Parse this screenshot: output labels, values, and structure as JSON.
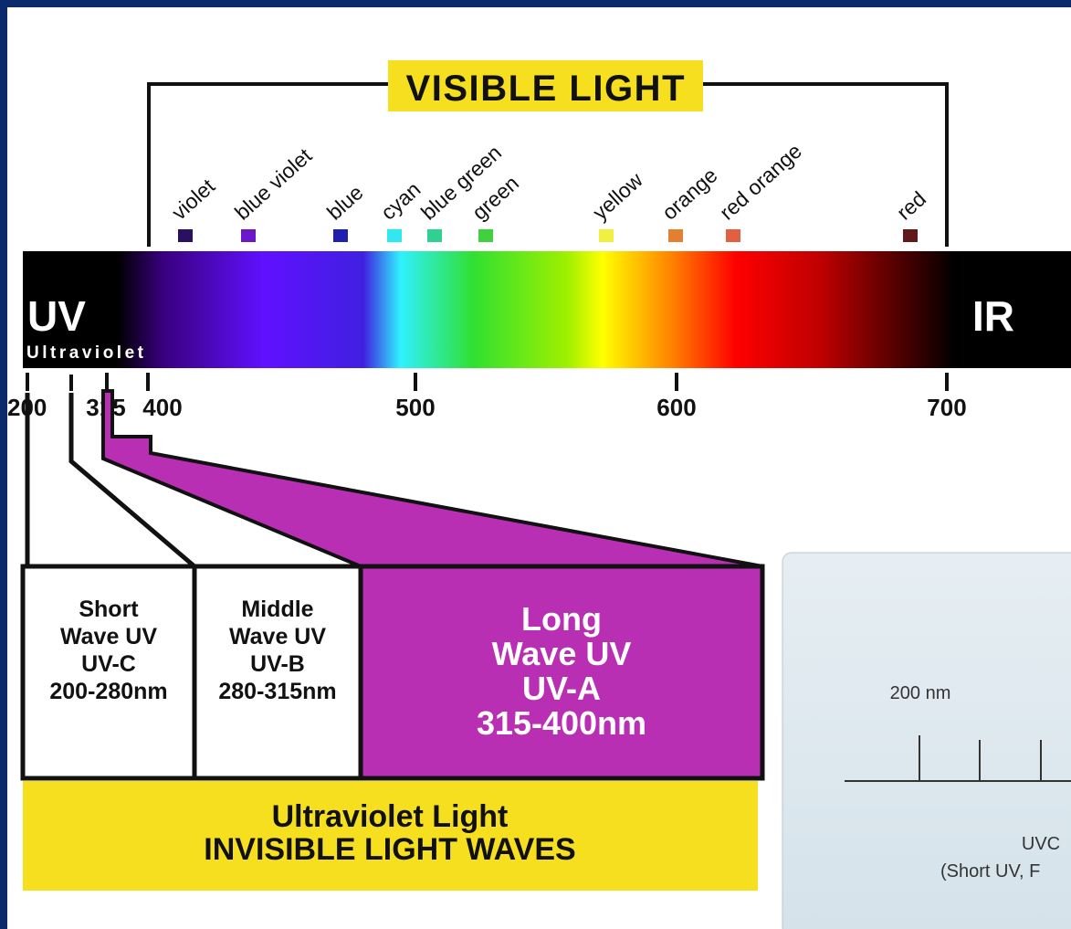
{
  "header": {
    "title": "VISIBLE LIGHT"
  },
  "colors": [
    "violet",
    "blue violet",
    "blue",
    "cyan",
    "blue green",
    "green",
    "yellow",
    "orange",
    "red orange",
    "red"
  ],
  "bar": {
    "left": "UV",
    "left_sub": "Ultraviolet",
    "right": "IR"
  },
  "scale": {
    "ticks": [
      200,
      315,
      400,
      500,
      600,
      700
    ]
  },
  "bands": [
    {
      "lines": [
        "Short",
        "Wave UV",
        "UV-C",
        "200-280nm"
      ]
    },
    {
      "lines": [
        "Middle",
        "Wave UV",
        "UV-B",
        "280-315nm"
      ]
    },
    {
      "lines": [
        "Long",
        "Wave UV",
        "UV-A",
        "315-400nm"
      ]
    }
  ],
  "footer": {
    "lines": [
      "Ultraviolet Light",
      "INVISIBLE LIGHT WAVES"
    ]
  },
  "inset": {
    "axis_label": "200 nm",
    "band": "UVC",
    "band_sub": "(Short UV, F"
  }
}
